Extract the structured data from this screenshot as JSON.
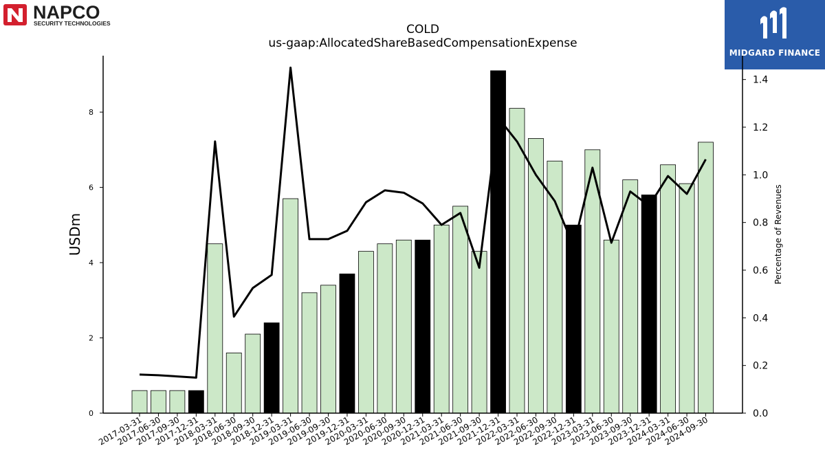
{
  "logos": {
    "left": {
      "brand": "NAPCO",
      "tagline": "SECURITY TECHNOLOGIES",
      "icon": "napco-n-icon"
    },
    "right": {
      "brand": "MIDGARD FINANCE",
      "icon": "midgard-m-icon",
      "color": "#2a5caa"
    }
  },
  "chart_data": {
    "type": "bar",
    "title": "COLD",
    "subtitle": "us-gaap:AllocatedShareBasedCompensationExpense",
    "ylabel": "USDm",
    "y2label": "Percentage of Revenues",
    "ylim": [
      0,
      9.5
    ],
    "y2lim": [
      0,
      1.5
    ],
    "yticks": [
      0,
      2,
      4,
      6,
      8
    ],
    "y2ticks": [
      0.0,
      0.2,
      0.4,
      0.6,
      0.8,
      1.0,
      1.2,
      1.4
    ],
    "grid": false,
    "colors": {
      "quarter_bar": "#cce8c8",
      "year_end_bar": "#000000",
      "line": "#000000"
    },
    "categories": [
      "2017-03-31",
      "2017-06-30",
      "2017-09-30",
      "2017-12-31",
      "2018-03-31",
      "2018-06-30",
      "2018-09-30",
      "2018-12-31",
      "2019-03-31",
      "2019-06-30",
      "2019-09-30",
      "2019-12-31",
      "2020-03-31",
      "2020-06-30",
      "2020-09-30",
      "2020-12-31",
      "2021-03-31",
      "2021-06-30",
      "2021-09-30",
      "2021-12-31",
      "2022-03-31",
      "2022-06-30",
      "2022-09-30",
      "2022-12-31",
      "2023-03-31",
      "2023-06-30",
      "2023-09-30",
      "2023-12-31",
      "2024-03-31",
      "2024-06-30",
      "2024-09-30"
    ],
    "series": [
      {
        "type": "bar",
        "axis": "left",
        "values": [
          0.6,
          0.6,
          0.6,
          0.6,
          4.5,
          1.6,
          2.1,
          2.4,
          5.7,
          3.2,
          3.4,
          3.7,
          4.3,
          4.5,
          4.6,
          4.6,
          5.0,
          5.5,
          4.3,
          9.1,
          8.1,
          7.3,
          6.7,
          5.0,
          7.0,
          4.6,
          6.2,
          5.8,
          6.6,
          6.1,
          7.2
        ]
      },
      {
        "type": "line",
        "axis": "right",
        "values": [
          0.162,
          0.159,
          0.154,
          0.149,
          1.14,
          0.405,
          0.525,
          0.58,
          1.45,
          0.73,
          0.73,
          0.765,
          0.885,
          0.935,
          0.925,
          0.88,
          0.79,
          0.84,
          0.61,
          1.24,
          1.14,
          1.0,
          0.89,
          0.7,
          1.03,
          0.715,
          0.93,
          0.87,
          0.995,
          0.92,
          1.065
        ]
      }
    ]
  }
}
